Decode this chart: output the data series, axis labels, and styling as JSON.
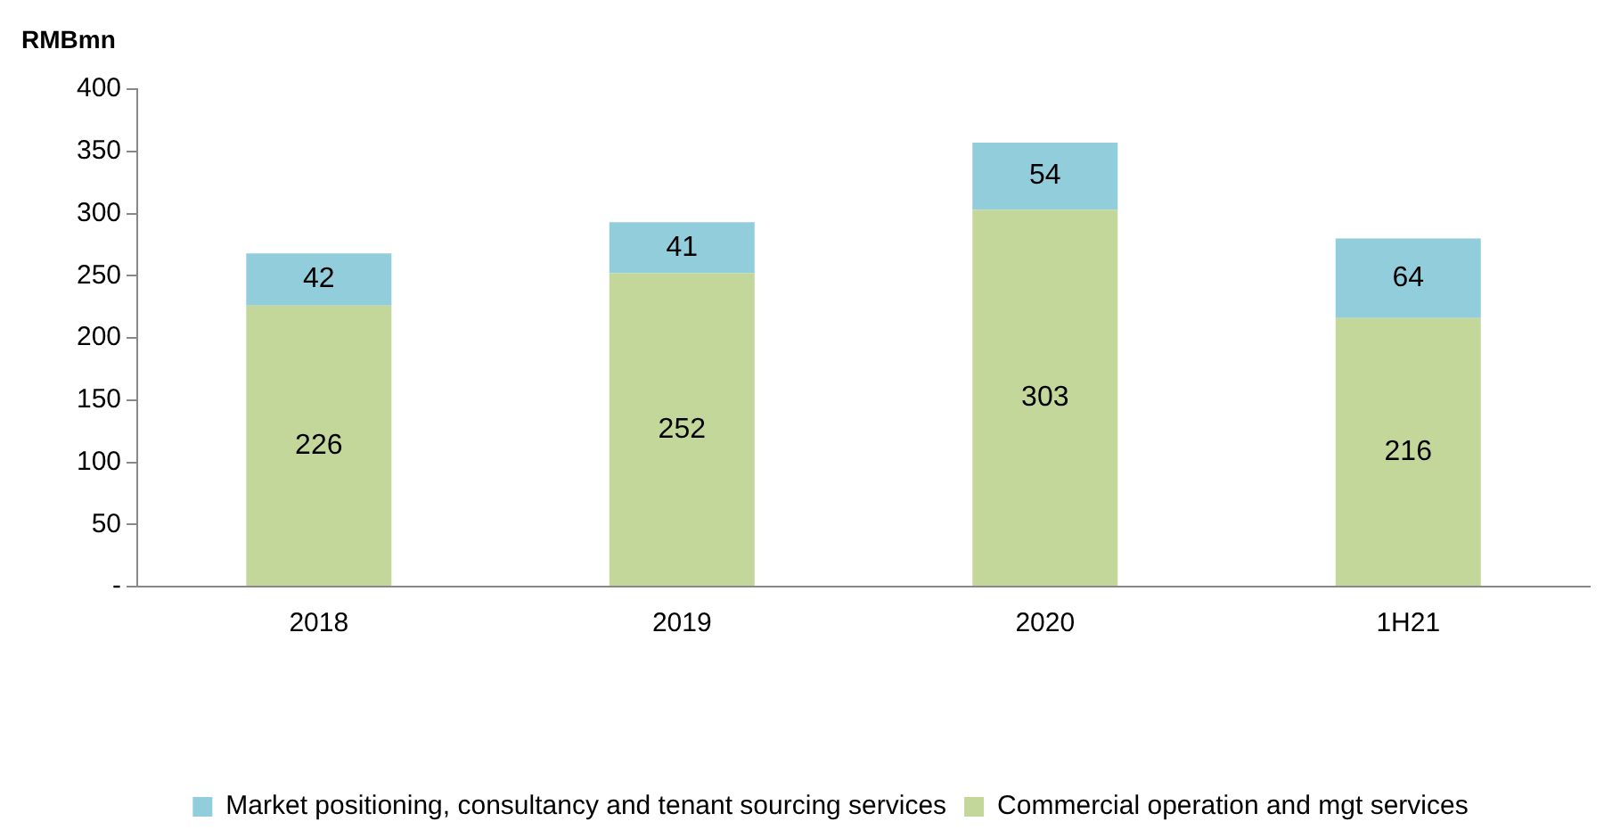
{
  "chart_data": {
    "type": "bar",
    "ylabel": "RMBmn",
    "categories": [
      "2018",
      "2019",
      "2020",
      "1H21"
    ],
    "stacked": true,
    "series": [
      {
        "name": "Commercial operation and mgt services",
        "color": "#c4d79b",
        "values": [
          226,
          252,
          303,
          216
        ]
      },
      {
        "name": "Market positioning, consultancy and tenant sourcing services",
        "color": "#92cddc",
        "values": [
          42,
          41,
          54,
          64
        ]
      }
    ],
    "ylim": [
      0,
      400
    ],
    "yticks": [
      {
        "value": 0,
        "label": "-"
      },
      50,
      100,
      150,
      200,
      250,
      300,
      350,
      400
    ],
    "grid": false,
    "legend": "bottom",
    "data_labels": true
  }
}
